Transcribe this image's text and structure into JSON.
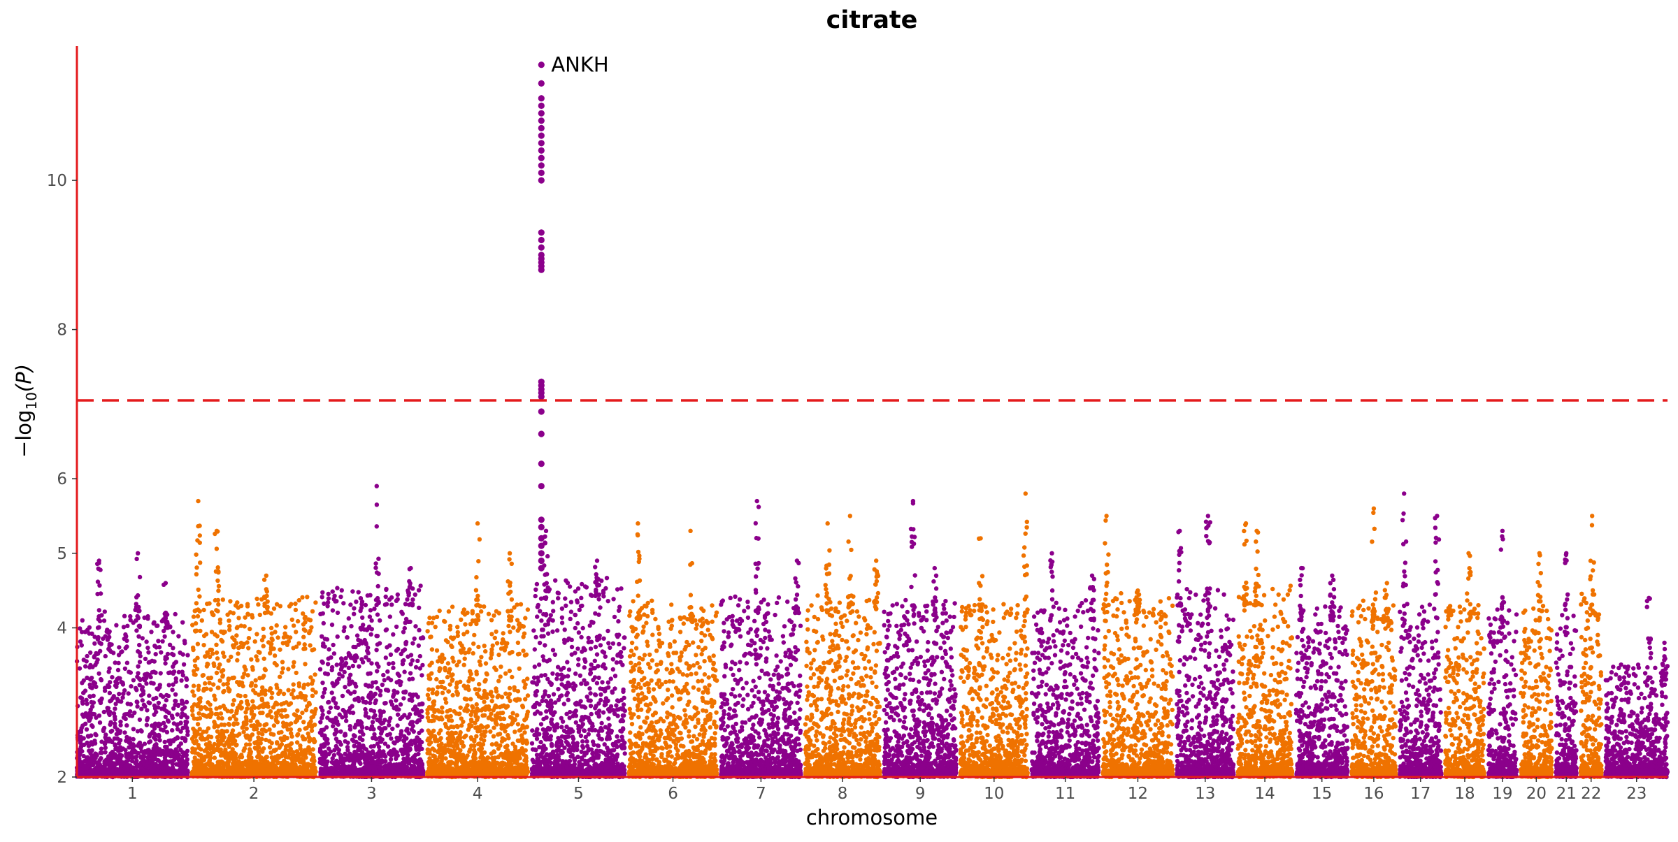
{
  "chart_data": {
    "type": "scatter",
    "subtype": "manhattan",
    "title": "citrate",
    "xlabel": "chromosome",
    "ylabel": "−log",
    "ylabel_subscript": "10",
    "ylabel_arg": "(P)",
    "ylim": [
      2,
      11.8
    ],
    "yticks": [
      2,
      4,
      5,
      6,
      8,
      10
    ],
    "significance_line": 7.05,
    "significance_line_color": "#e41a1c",
    "axis_color": "#e41a1c",
    "colors": {
      "odd": "#8b008b",
      "even": "#ef7200"
    },
    "grid": false,
    "legend": "none",
    "chromosomes": [
      {
        "label": "1",
        "size": 43,
        "base": 4.2,
        "peaks": [
          {
            "pos": 0.2,
            "y": 4.9
          },
          {
            "pos": 0.55,
            "y": 5.0
          },
          {
            "pos": 0.8,
            "y": 4.6
          }
        ]
      },
      {
        "label": "2",
        "size": 48,
        "base": 4.4,
        "peaks": [
          {
            "pos": 0.05,
            "y": 5.7
          },
          {
            "pos": 0.2,
            "y": 5.3
          },
          {
            "pos": 0.6,
            "y": 4.7
          }
        ]
      },
      {
        "label": "3",
        "size": 40,
        "base": 4.5,
        "peaks": [
          {
            "pos": 0.55,
            "y": 5.9
          },
          {
            "pos": 0.88,
            "y": 4.8
          }
        ]
      },
      {
        "label": "4",
        "size": 39,
        "base": 4.3,
        "peaks": [
          {
            "pos": 0.5,
            "y": 5.4
          },
          {
            "pos": 0.82,
            "y": 5.0
          }
        ]
      },
      {
        "label": "5",
        "size": 36,
        "base": 4.6,
        "peaks": [
          {
            "pos": 0.15,
            "y": 5.3
          },
          {
            "pos": 0.7,
            "y": 4.9
          }
        ]
      },
      {
        "label": "6",
        "size": 34,
        "base": 4.3,
        "peaks": [
          {
            "pos": 0.1,
            "y": 5.4
          },
          {
            "pos": 0.7,
            "y": 5.3
          }
        ]
      },
      {
        "label": "7",
        "size": 31,
        "base": 4.4,
        "peaks": [
          {
            "pos": 0.45,
            "y": 5.7
          },
          {
            "pos": 0.95,
            "y": 4.9
          }
        ]
      },
      {
        "label": "8",
        "size": 29,
        "base": 4.4,
        "peaks": [
          {
            "pos": 0.3,
            "y": 5.4
          },
          {
            "pos": 0.6,
            "y": 5.5
          },
          {
            "pos": 0.95,
            "y": 4.9
          }
        ]
      },
      {
        "label": "9",
        "size": 28,
        "base": 4.3,
        "peaks": [
          {
            "pos": 0.4,
            "y": 5.7
          },
          {
            "pos": 0.7,
            "y": 4.8
          }
        ]
      },
      {
        "label": "10",
        "size": 26,
        "base": 4.3,
        "peaks": [
          {
            "pos": 0.3,
            "y": 5.2
          },
          {
            "pos": 0.97,
            "y": 5.8
          }
        ]
      },
      {
        "label": "11",
        "size": 26,
        "base": 4.3,
        "peaks": [
          {
            "pos": 0.3,
            "y": 5.0
          },
          {
            "pos": 0.9,
            "y": 4.7
          }
        ]
      },
      {
        "label": "12",
        "size": 27,
        "base": 4.4,
        "peaks": [
          {
            "pos": 0.05,
            "y": 5.5
          },
          {
            "pos": 0.5,
            "y": 4.5
          }
        ]
      },
      {
        "label": "13",
        "size": 22,
        "base": 4.5,
        "peaks": [
          {
            "pos": 0.05,
            "y": 5.3
          },
          {
            "pos": 0.55,
            "y": 5.5
          }
        ]
      },
      {
        "label": "14",
        "size": 21,
        "base": 4.5,
        "peaks": [
          {
            "pos": 0.15,
            "y": 5.4
          },
          {
            "pos": 0.35,
            "y": 5.3
          }
        ]
      },
      {
        "label": "15",
        "size": 20,
        "base": 4.3,
        "peaks": [
          {
            "pos": 0.1,
            "y": 4.8
          },
          {
            "pos": 0.7,
            "y": 4.7
          }
        ]
      },
      {
        "label": "16",
        "size": 17,
        "base": 4.3,
        "peaks": [
          {
            "pos": 0.5,
            "y": 5.6
          },
          {
            "pos": 0.8,
            "y": 4.6
          }
        ]
      },
      {
        "label": "17",
        "size": 16,
        "base": 4.3,
        "peaks": [
          {
            "pos": 0.1,
            "y": 5.8
          },
          {
            "pos": 0.9,
            "y": 5.5
          }
        ]
      },
      {
        "label": "18",
        "size": 15,
        "base": 4.3,
        "peaks": [
          {
            "pos": 0.6,
            "y": 5.0
          }
        ]
      },
      {
        "label": "19",
        "size": 11,
        "base": 4.2,
        "peaks": [
          {
            "pos": 0.5,
            "y": 5.3
          }
        ]
      },
      {
        "label": "20",
        "size": 12,
        "base": 4.3,
        "peaks": [
          {
            "pos": 0.6,
            "y": 5.0
          }
        ]
      },
      {
        "label": "21",
        "size": 8,
        "base": 4.1,
        "peaks": [
          {
            "pos": 0.5,
            "y": 5.0
          }
        ]
      },
      {
        "label": "22",
        "size": 8,
        "base": 4.4,
        "peaks": [
          {
            "pos": 0.55,
            "y": 5.5
          }
        ]
      },
      {
        "label": "23",
        "size": 24,
        "base": 3.5,
        "peaks": [
          {
            "pos": 0.7,
            "y": 4.4
          },
          {
            "pos": 0.95,
            "y": 3.8
          }
        ]
      }
    ],
    "lead_signal": {
      "label": "ANKH",
      "chromosome": "5",
      "pos": 0.1,
      "values": [
        11.55,
        11.3,
        11.1,
        11.0,
        10.9,
        10.8,
        10.7,
        10.6,
        10.5,
        10.4,
        10.3,
        10.2,
        10.1,
        10.0,
        9.3,
        9.2,
        9.1,
        9.0,
        8.95,
        8.9,
        8.85,
        8.8,
        7.3,
        7.25,
        7.2,
        7.15,
        7.1,
        6.9,
        6.6,
        6.2,
        5.9,
        5.45,
        5.35,
        5.2,
        5.1,
        5.0,
        4.9,
        4.8
      ]
    }
  }
}
